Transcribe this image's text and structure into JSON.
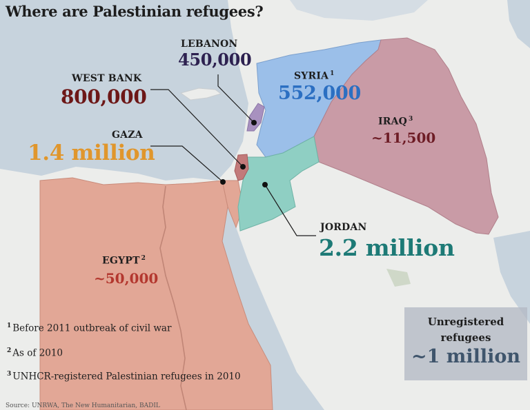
{
  "title": "Where are Palestinian refugees?",
  "regions": {
    "lebanon": {
      "name": "LEBANON",
      "value": "450,000",
      "color": "#2d2150"
    },
    "west_bank": {
      "name": "WEST BANK",
      "value": "800,000",
      "color": "#6d1717"
    },
    "gaza": {
      "name": "GAZA",
      "value": "1.4 million",
      "color": "#e0962c"
    },
    "syria": {
      "name": "SYRIA",
      "footnote_ref": "1",
      "value": "552,000",
      "color": "#2b6fc2"
    },
    "iraq": {
      "name": "IRAQ",
      "footnote_ref": "3",
      "value": "~11,500",
      "color": "#6d1c25"
    },
    "jordan": {
      "name": "JORDAN",
      "value": "2.2 million",
      "color": "#1d7a76"
    },
    "egypt": {
      "name": "EGYPT",
      "footnote_ref": "2",
      "value": "~50,000",
      "color": "#b3372e"
    }
  },
  "footnotes": [
    {
      "num": "1",
      "text": "Before 2011 outbreak of civil war"
    },
    {
      "num": "2",
      "text": "As of 2010"
    },
    {
      "num": "3",
      "text": "UNHCR-registered Palestinian refugees in 2010"
    }
  ],
  "unregistered": {
    "label_line1": "Unregistered",
    "label_line2": "refugees",
    "value": "~1 million"
  },
  "source": "Source: UNRWA, The New Humanitarian, BADIL",
  "colors": {
    "sea": "#c7d3dd",
    "land": "#ecedeb",
    "egypt_fill": "#e2a796",
    "syria_fill": "#9bbfe9",
    "iraq_fill": "#c99ba6",
    "jordan_fill": "#8fcfc3",
    "lebanon_fill": "#a891bf",
    "palestine_fill": "#c27a7a"
  }
}
